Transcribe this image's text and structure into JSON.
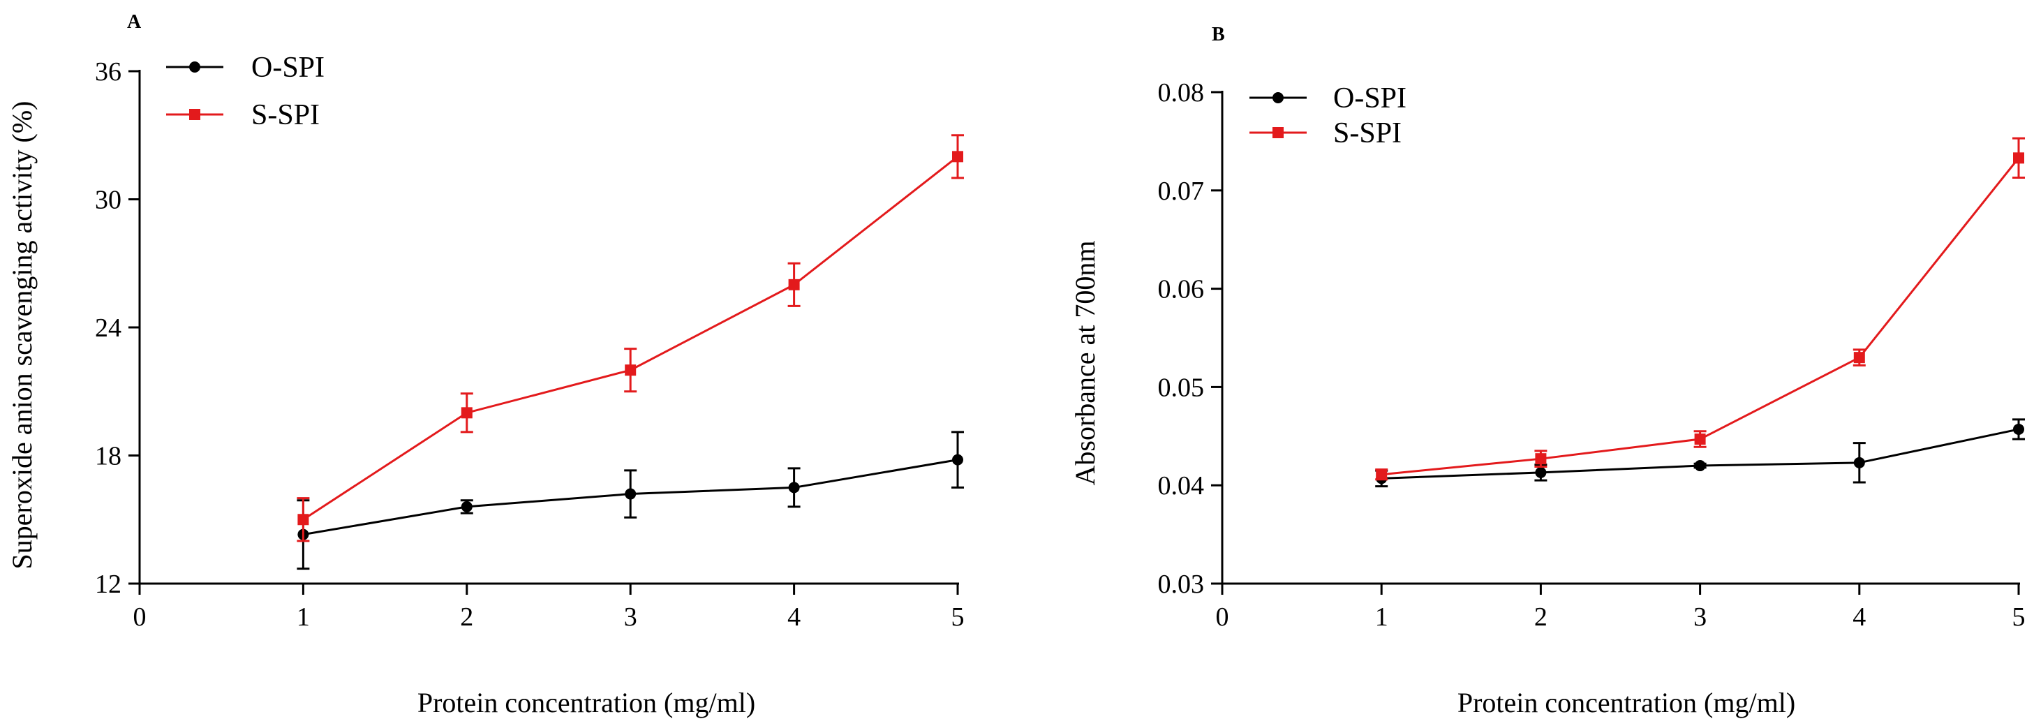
{
  "chart_data": [
    {
      "type": "line",
      "panel_label": "A",
      "xlabel": "Protein concentration (mg/ml)",
      "ylabel": "Superoxide anion scavenging activity (%)",
      "xlim": [
        0,
        5
      ],
      "ylim": [
        12,
        36
      ],
      "xticks": [
        "0",
        "1",
        "2",
        "3",
        "4",
        "5"
      ],
      "yticks": [
        "12",
        "18",
        "24",
        "30",
        "36"
      ],
      "x": [
        1,
        2,
        3,
        4,
        5
      ],
      "grid": false,
      "legend_position": "top-left",
      "series": [
        {
          "name": "O-SPI",
          "color": "#000000",
          "marker": "circle",
          "values": [
            14.3,
            15.6,
            16.2,
            16.5,
            17.8
          ],
          "errors": [
            1.6,
            0.3,
            1.1,
            0.9,
            1.3
          ]
        },
        {
          "name": "S-SPI",
          "color": "#e31a1c",
          "marker": "square",
          "values": [
            15.0,
            20.0,
            22.0,
            26.0,
            32.0
          ],
          "errors": [
            1.0,
            0.9,
            1.0,
            1.0,
            1.0
          ]
        }
      ]
    },
    {
      "type": "line",
      "panel_label": "B",
      "xlabel": "Protein concentration (mg/ml)",
      "ylabel": "Absorbance at 700nm",
      "xlim": [
        0,
        5
      ],
      "ylim": [
        0.03,
        0.08
      ],
      "xticks": [
        "0",
        "1",
        "2",
        "3",
        "4",
        "5"
      ],
      "yticks": [
        "0.03",
        "0.04",
        "0.05",
        "0.06",
        "0.07",
        "0.08"
      ],
      "x": [
        1,
        2,
        3,
        4,
        5
      ],
      "grid": false,
      "legend_position": "top-left",
      "series": [
        {
          "name": "O-SPI",
          "color": "#000000",
          "marker": "circle",
          "values": [
            0.0407,
            0.0413,
            0.042,
            0.0423,
            0.0457
          ],
          "errors": [
            0.0008,
            0.0008,
            0.0002,
            0.002,
            0.001
          ]
        },
        {
          "name": "S-SPI",
          "color": "#e31a1c",
          "marker": "square",
          "values": [
            0.0411,
            0.0427,
            0.0447,
            0.053,
            0.0733
          ],
          "errors": [
            0.0005,
            0.0008,
            0.0008,
            0.0008,
            0.002
          ]
        }
      ]
    }
  ]
}
